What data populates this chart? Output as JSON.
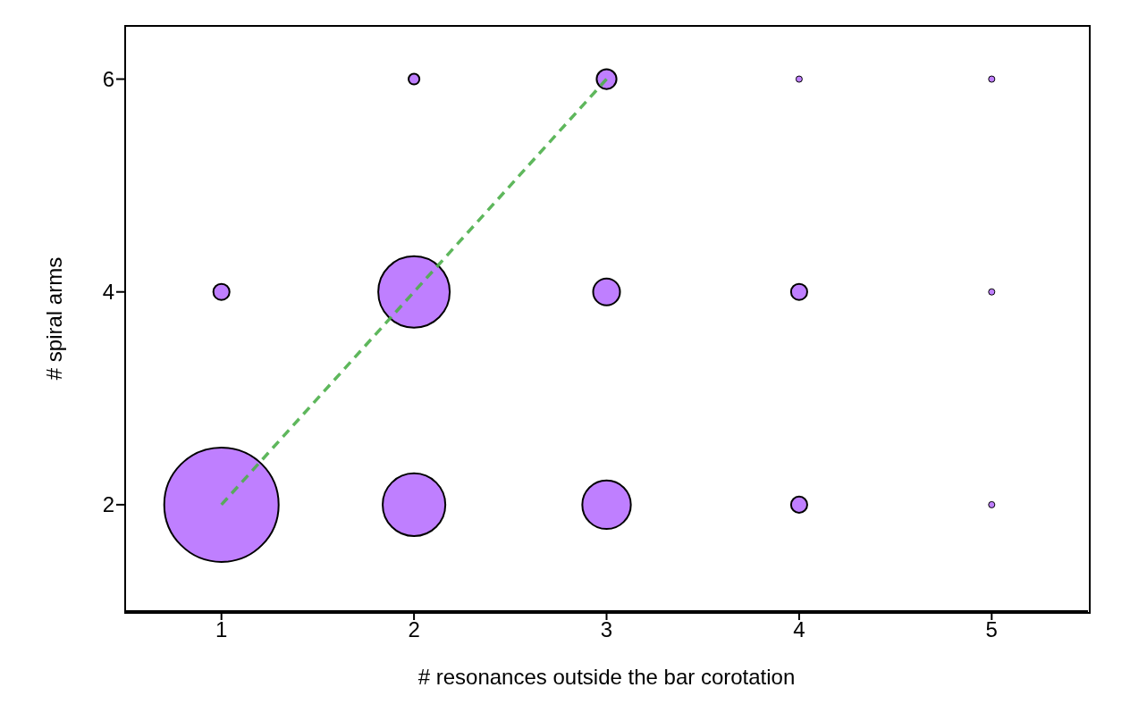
{
  "chart_data": {
    "type": "bubble",
    "xlabel": "# resonances outside the bar corotation",
    "ylabel": "# spiral arms",
    "xlim": [
      0.5,
      5.5
    ],
    "ylim": [
      1,
      6.5
    ],
    "xticks": [
      1,
      2,
      3,
      4,
      5
    ],
    "yticks": [
      2,
      4,
      6
    ],
    "series": [
      {
        "type": "bubble",
        "color": "#bf7fff",
        "x": [
          1,
          2,
          3,
          4,
          5,
          1,
          2,
          3,
          4,
          5,
          2,
          3,
          4,
          5
        ],
        "values": [
          2,
          2,
          2,
          2,
          2,
          4,
          4,
          4,
          4,
          4,
          6,
          6,
          6,
          6
        ],
        "sizes": [
          1,
          0.3,
          0.18,
          0.02,
          0.003,
          0.02,
          0.39,
          0.055,
          0.02,
          0.003,
          0.009,
          0.03,
          0.003,
          0.003
        ]
      },
      {
        "type": "line",
        "color": "#4daf4a",
        "x": [
          1,
          2,
          3
        ],
        "values": [
          2,
          4,
          6
        ],
        "line_style": "dashed"
      }
    ]
  }
}
